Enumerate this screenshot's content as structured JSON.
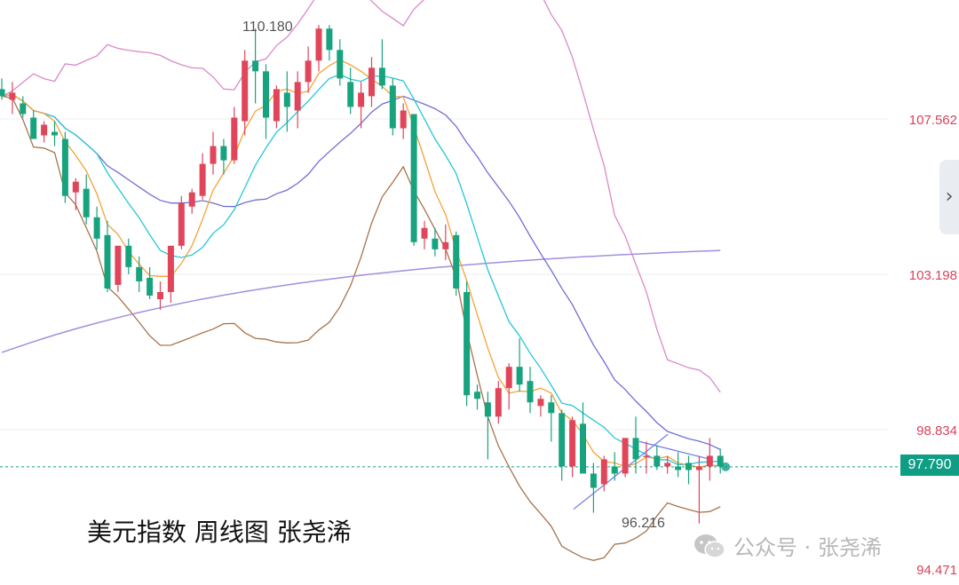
{
  "chart_data": {
    "type": "candlestick",
    "title": "美元指数 周线图 张尧浠",
    "price_labels": [
      "107.562",
      "103.198",
      "98.834",
      "94.471"
    ],
    "current_price": "97.790",
    "annotations": {
      "high": "110.180",
      "low": "96.216"
    },
    "ylim": [
      94.471,
      111.0
    ],
    "candles": [
      [
        108.4,
        108.7,
        108.1,
        108.2
      ],
      [
        108.1,
        108.6,
        107.7,
        108.3
      ],
      [
        108.0,
        108.2,
        107.6,
        107.7
      ],
      [
        107.6,
        107.8,
        107.0,
        107.0
      ],
      [
        107.1,
        107.5,
        106.9,
        107.4
      ],
      [
        107.2,
        107.5,
        106.8,
        107.1
      ],
      [
        107.0,
        107.2,
        105.2,
        105.4
      ],
      [
        105.5,
        105.9,
        105.0,
        105.8
      ],
      [
        105.6,
        106.0,
        104.6,
        104.8
      ],
      [
        104.8,
        105.1,
        103.9,
        104.2
      ],
      [
        104.3,
        104.7,
        102.7,
        102.8
      ],
      [
        102.9,
        104.0,
        102.7,
        104.0
      ],
      [
        104.0,
        104.2,
        103.2,
        103.4
      ],
      [
        103.4,
        103.7,
        102.7,
        103.0
      ],
      [
        103.1,
        103.4,
        102.5,
        102.6
      ],
      [
        102.5,
        103.0,
        102.2,
        102.7
      ],
      [
        102.7,
        104.0,
        102.4,
        104.0
      ],
      [
        104.0,
        105.4,
        103.9,
        105.2
      ],
      [
        105.1,
        105.6,
        104.9,
        105.5
      ],
      [
        105.4,
        106.6,
        105.3,
        106.3
      ],
      [
        106.3,
        107.2,
        106.0,
        106.8
      ],
      [
        106.8,
        107.0,
        106.0,
        106.4
      ],
      [
        106.4,
        107.9,
        106.3,
        107.6
      ],
      [
        107.5,
        109.5,
        107.1,
        109.2
      ],
      [
        109.2,
        110.1,
        108.0,
        108.9
      ],
      [
        108.9,
        109.1,
        107.0,
        107.6
      ],
      [
        107.5,
        108.5,
        107.3,
        108.4
      ],
      [
        108.3,
        108.9,
        107.2,
        107.9
      ],
      [
        107.8,
        108.9,
        107.3,
        108.6
      ],
      [
        108.6,
        109.6,
        108.3,
        109.2
      ],
      [
        109.2,
        110.2,
        108.9,
        110.1
      ],
      [
        110.1,
        110.2,
        109.2,
        109.5
      ],
      [
        109.5,
        109.8,
        108.5,
        108.7
      ],
      [
        108.6,
        109.0,
        107.7,
        107.9
      ],
      [
        107.9,
        108.6,
        107.3,
        108.3
      ],
      [
        108.2,
        109.3,
        107.9,
        109.0
      ],
      [
        109.0,
        109.8,
        108.4,
        108.5
      ],
      [
        108.5,
        108.7,
        107.1,
        107.3
      ],
      [
        107.3,
        108.0,
        107.0,
        107.8
      ],
      [
        107.7,
        107.7,
        104.0,
        104.1
      ],
      [
        104.2,
        104.7,
        103.9,
        104.5
      ],
      [
        104.2,
        104.5,
        103.7,
        103.9
      ],
      [
        103.9,
        104.6,
        103.6,
        104.1
      ],
      [
        104.3,
        104.4,
        102.6,
        102.8
      ],
      [
        102.7,
        103.0,
        99.5,
        99.8
      ],
      [
        99.9,
        100.1,
        99.4,
        99.7
      ],
      [
        99.6,
        99.9,
        98.0,
        99.2
      ],
      [
        99.2,
        100.2,
        99.0,
        100.0
      ],
      [
        100.0,
        100.7,
        99.4,
        100.6
      ],
      [
        100.6,
        101.4,
        99.9,
        100.1
      ],
      [
        100.2,
        100.6,
        99.3,
        99.6
      ],
      [
        99.5,
        99.8,
        99.2,
        99.7
      ],
      [
        99.6,
        99.8,
        98.5,
        99.3
      ],
      [
        99.3,
        99.4,
        97.4,
        97.8
      ],
      [
        97.8,
        99.2,
        97.5,
        99.1
      ],
      [
        99.0,
        99.6,
        97.6,
        97.6
      ],
      [
        97.6,
        97.9,
        96.5,
        97.2
      ],
      [
        97.3,
        98.1,
        97.1,
        98.0
      ],
      [
        97.8,
        98.2,
        97.4,
        97.6
      ],
      [
        97.6,
        98.6,
        97.5,
        98.6
      ],
      [
        98.6,
        99.2,
        97.6,
        98.0
      ],
      [
        98.1,
        98.5,
        97.6,
        98.1
      ],
      [
        98.1,
        98.4,
        97.7,
        97.8
      ],
      [
        97.8,
        98.1,
        97.6,
        97.9
      ],
      [
        97.8,
        98.2,
        97.5,
        97.7
      ],
      [
        97.9,
        98.1,
        97.3,
        97.7
      ],
      [
        97.7,
        98.1,
        96.2,
        97.8
      ],
      [
        97.8,
        98.6,
        97.4,
        98.1
      ],
      [
        98.1,
        98.3,
        97.6,
        97.8
      ]
    ]
  },
  "ui": {
    "current_price_label": "97.790",
    "high_label": "110.180",
    "low_label": "96.216",
    "caption": "美元指数 周线图 张尧浠",
    "watermark": "公众号 · 张尧浠",
    "side_button": "›"
  }
}
